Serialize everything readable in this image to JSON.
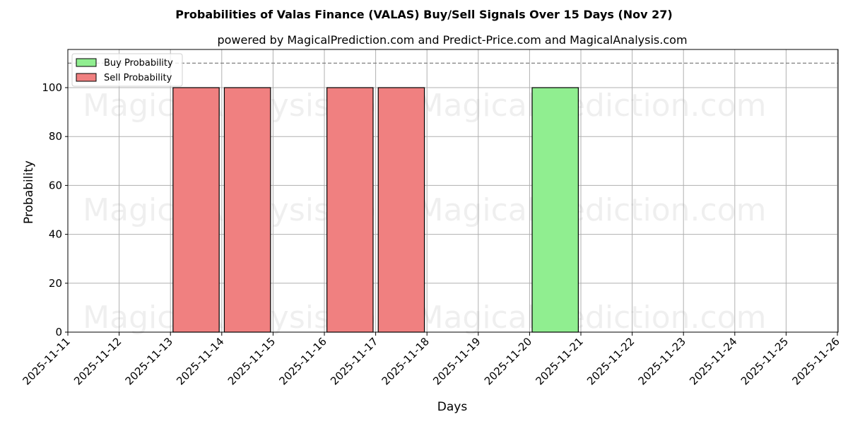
{
  "chart_data": {
    "type": "bar",
    "title": "Probabilities of Valas Finance (VALAS) Buy/Sell Signals Over 15 Days (Nov 27)",
    "subtitle": "powered by MagicalPrediction.com and Predict-Price.com and MagicalAnalysis.com",
    "xlabel": "Days",
    "ylabel": "Probability",
    "ylim": [
      0,
      115
    ],
    "yticks": [
      0,
      20,
      40,
      60,
      80,
      100
    ],
    "xticks": [
      "2025-11-11",
      "2025-11-12",
      "2025-11-13",
      "2025-11-14",
      "2025-11-15",
      "2025-11-16",
      "2025-11-17",
      "2025-11-18",
      "2025-11-19",
      "2025-11-20",
      "2025-11-21",
      "2025-11-22",
      "2025-11-23",
      "2025-11-24",
      "2025-11-25",
      "2025-11-26"
    ],
    "grid": true,
    "legend_position": "upper left",
    "reference_line": {
      "y": 110,
      "style": "dashed",
      "color": "#808080"
    },
    "series": [
      {
        "name": "Buy Probability",
        "color": "#90ee90",
        "bars": [
          {
            "x": "2025-11-20",
            "value": 100
          }
        ]
      },
      {
        "name": "Sell Probability",
        "color": "#f08080",
        "bars": [
          {
            "x": "2025-11-13",
            "value": 100
          },
          {
            "x": "2025-11-14",
            "value": 100
          },
          {
            "x": "2025-11-16",
            "value": 100
          },
          {
            "x": "2025-11-17",
            "value": 100
          }
        ]
      }
    ],
    "watermarks": [
      "MagicalAnalysis.com",
      "MagicalPrediction.com"
    ]
  }
}
